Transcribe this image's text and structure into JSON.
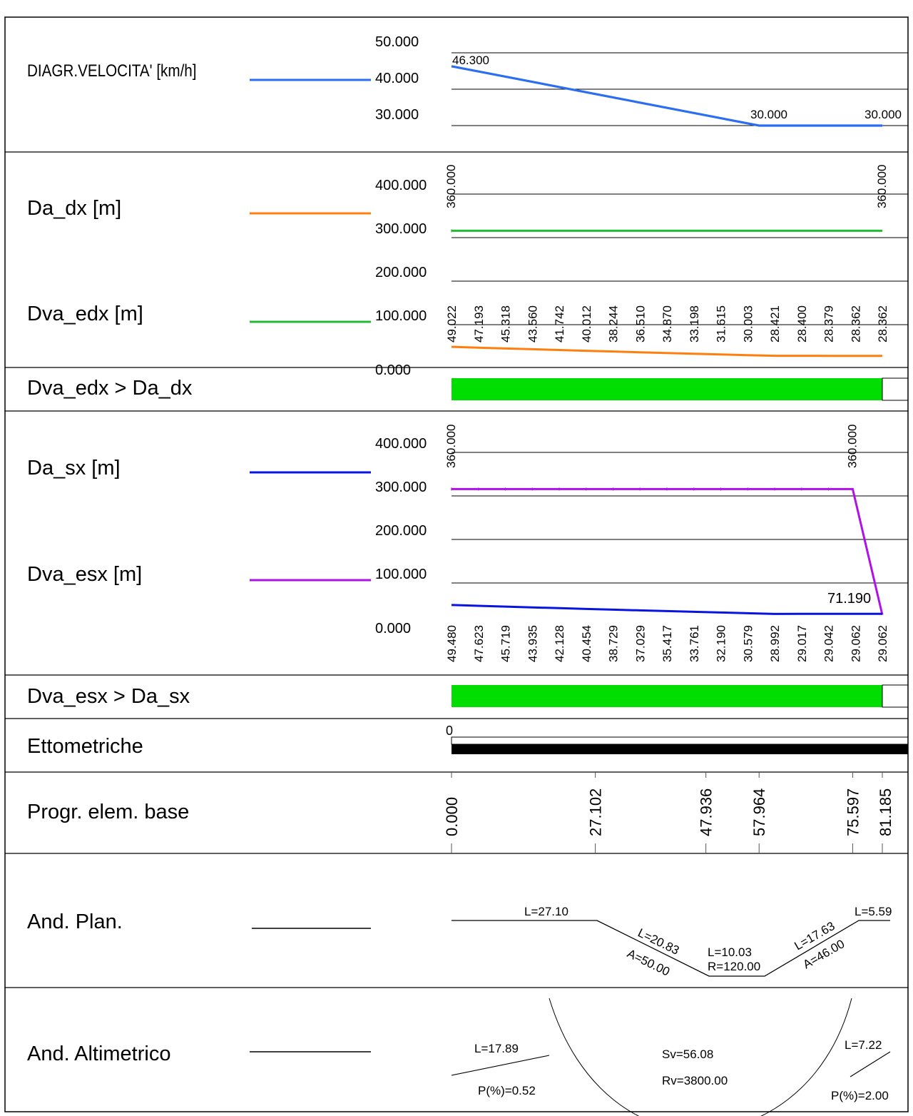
{
  "colors": {
    "velocity": "#2b6ef0",
    "da_dx": "#ff7f0e",
    "dva_edx": "#22bb33",
    "da_sx": "#0a14e0",
    "dva_esx": "#b011e6",
    "check_ok": "#00dd00",
    "ettometriche": "#000000"
  },
  "labels": {
    "velocity": "DIAGR.VELOCITA' [km/h]",
    "da_dx": "Da_dx [m]",
    "dva_edx": "Dva_edx [m]",
    "check_dx": "Dva_edx > Da_dx",
    "da_sx": "Da_sx [m]",
    "dva_esx": "Dva_esx [m]",
    "check_sx": "Dva_esx > Da_sx",
    "ettometriche": "Ettometriche",
    "progr": "Progr. elem. base",
    "and_plan": "And. Plan.",
    "and_alt": "And. Altimetrico"
  },
  "chart_data": [
    {
      "type": "line",
      "name": "velocity",
      "yticks": [
        "50.000",
        "40.000",
        "30.000"
      ],
      "ylim": [
        30,
        50
      ],
      "x": [
        0.0,
        57.964,
        81.185
      ],
      "values": [
        46.3,
        30.0,
        30.0
      ],
      "point_labels": [
        "46.300",
        "30.000",
        "30.000"
      ]
    },
    {
      "type": "line",
      "name": "right_side",
      "yticks": [
        "400.000",
        "300.000",
        "200.000",
        "100.000",
        "0.000"
      ],
      "ylim": [
        0,
        400
      ],
      "series": [
        {
          "name": "Dva_edx [m]",
          "x": [
            0,
            81.185
          ],
          "values": [
            360,
            360
          ],
          "labels": [
            "360.000",
            "360.000"
          ]
        },
        {
          "name": "Da_dx [m]",
          "values": [
            49.022,
            47.193,
            45.318,
            43.56,
            41.742,
            40.012,
            38.244,
            36.51,
            34.87,
            33.198,
            31.615,
            30.003,
            28.421,
            28.4,
            28.379,
            28.362,
            28.362
          ],
          "labels": [
            "49.022",
            "47.193",
            "45.318",
            "43.560",
            "41.742",
            "40.012",
            "38.244",
            "36.510",
            "34.870",
            "33.198",
            "31.615",
            "30.003",
            "28.421",
            "28.400",
            "28.379",
            "28.362",
            "28.362"
          ]
        }
      ]
    },
    {
      "type": "line",
      "name": "left_side",
      "yticks": [
        "400.000",
        "300.000",
        "200.000",
        "100.000",
        "0.000"
      ],
      "ylim": [
        0,
        400
      ],
      "series": [
        {
          "name": "Dva_esx [m]",
          "x": [
            0,
            75.597,
            81.185
          ],
          "values": [
            360,
            360,
            71.19
          ],
          "labels": [
            "360.000",
            "360.000",
            "71.190"
          ]
        },
        {
          "name": "Da_sx [m]",
          "values": [
            49.48,
            47.623,
            45.719,
            43.935,
            42.128,
            40.454,
            38.729,
            37.029,
            35.417,
            33.761,
            32.19,
            30.579,
            28.992,
            29.017,
            29.042,
            29.062,
            29.062
          ],
          "labels": [
            "49.480",
            "47.623",
            "45.719",
            "43.935",
            "42.128",
            "40.454",
            "38.729",
            "37.029",
            "35.417",
            "33.761",
            "32.190",
            "30.579",
            "28.992",
            "29.017",
            "29.042",
            "29.062",
            "29.062"
          ]
        }
      ]
    }
  ],
  "ettometriche": {
    "label0": "0"
  },
  "progressive": {
    "values": [
      0.0,
      27.102,
      47.936,
      57.964,
      75.597,
      81.185
    ],
    "labels": [
      "0.000",
      "27.102",
      "47.936",
      "57.964",
      "75.597",
      "81.185"
    ]
  },
  "plan": {
    "l1": "L=27.10",
    "l2": "L=20.83",
    "a2": "A=50.00",
    "l3": "L=10.03",
    "r3": "R=120.00",
    "l4": "L=17.63",
    "a4": "A=46.00",
    "l5": "L=5.59"
  },
  "alt": {
    "l1": "L=17.89",
    "p1": "P(%)=0.52",
    "sv": "Sv=56.08",
    "rv": "Rv=3800.00",
    "l2": "L=7.22",
    "p2": "P(%)=2.00"
  }
}
